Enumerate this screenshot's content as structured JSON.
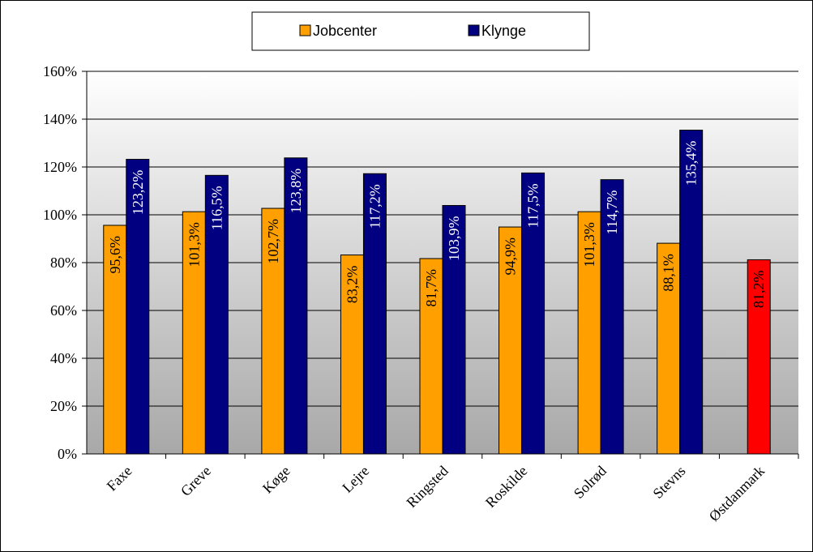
{
  "chart_data": {
    "type": "bar",
    "categories": [
      "Faxe",
      "Greve",
      "Køge",
      "Lejre",
      "Ringsted",
      "Roskilde",
      "Solrød",
      "Stevns",
      "Østdanmark"
    ],
    "series": [
      {
        "name": "Jobcenter",
        "color": "#FFA000",
        "values": [
          95.6,
          101.3,
          102.7,
          83.2,
          81.7,
          94.9,
          101.3,
          88.1,
          null
        ],
        "labels": [
          "95,6%",
          "101,3%",
          "102,7%",
          "83,2%",
          "81,7%",
          "94,9%",
          "101,3%",
          "88,1%",
          null
        ]
      },
      {
        "name": "Klynge",
        "color": "#000080",
        "values": [
          123.2,
          116.5,
          123.8,
          117.2,
          103.9,
          117.5,
          114.7,
          135.4,
          null
        ],
        "labels": [
          "123,2%",
          "116,5%",
          "123,8%",
          "117,2%",
          "103,9%",
          "117,5%",
          "114,7%",
          "135,4%",
          null
        ]
      },
      {
        "name": "Østdanmark",
        "color": "#FF0000",
        "values": [
          null,
          null,
          null,
          null,
          null,
          null,
          null,
          null,
          81.2
        ],
        "labels": [
          null,
          null,
          null,
          null,
          null,
          null,
          null,
          null,
          "81,2%"
        ]
      }
    ],
    "legend": {
      "position": "top",
      "entries": [
        {
          "label": "Jobcenter",
          "color": "#FFA000"
        },
        {
          "label": "Klynge",
          "color": "#000080"
        }
      ]
    },
    "yticks": [
      "0%",
      "20%",
      "40%",
      "60%",
      "80%",
      "100%",
      "120%",
      "140%",
      "160%"
    ],
    "ylim": [
      0,
      160
    ],
    "grid": true
  }
}
